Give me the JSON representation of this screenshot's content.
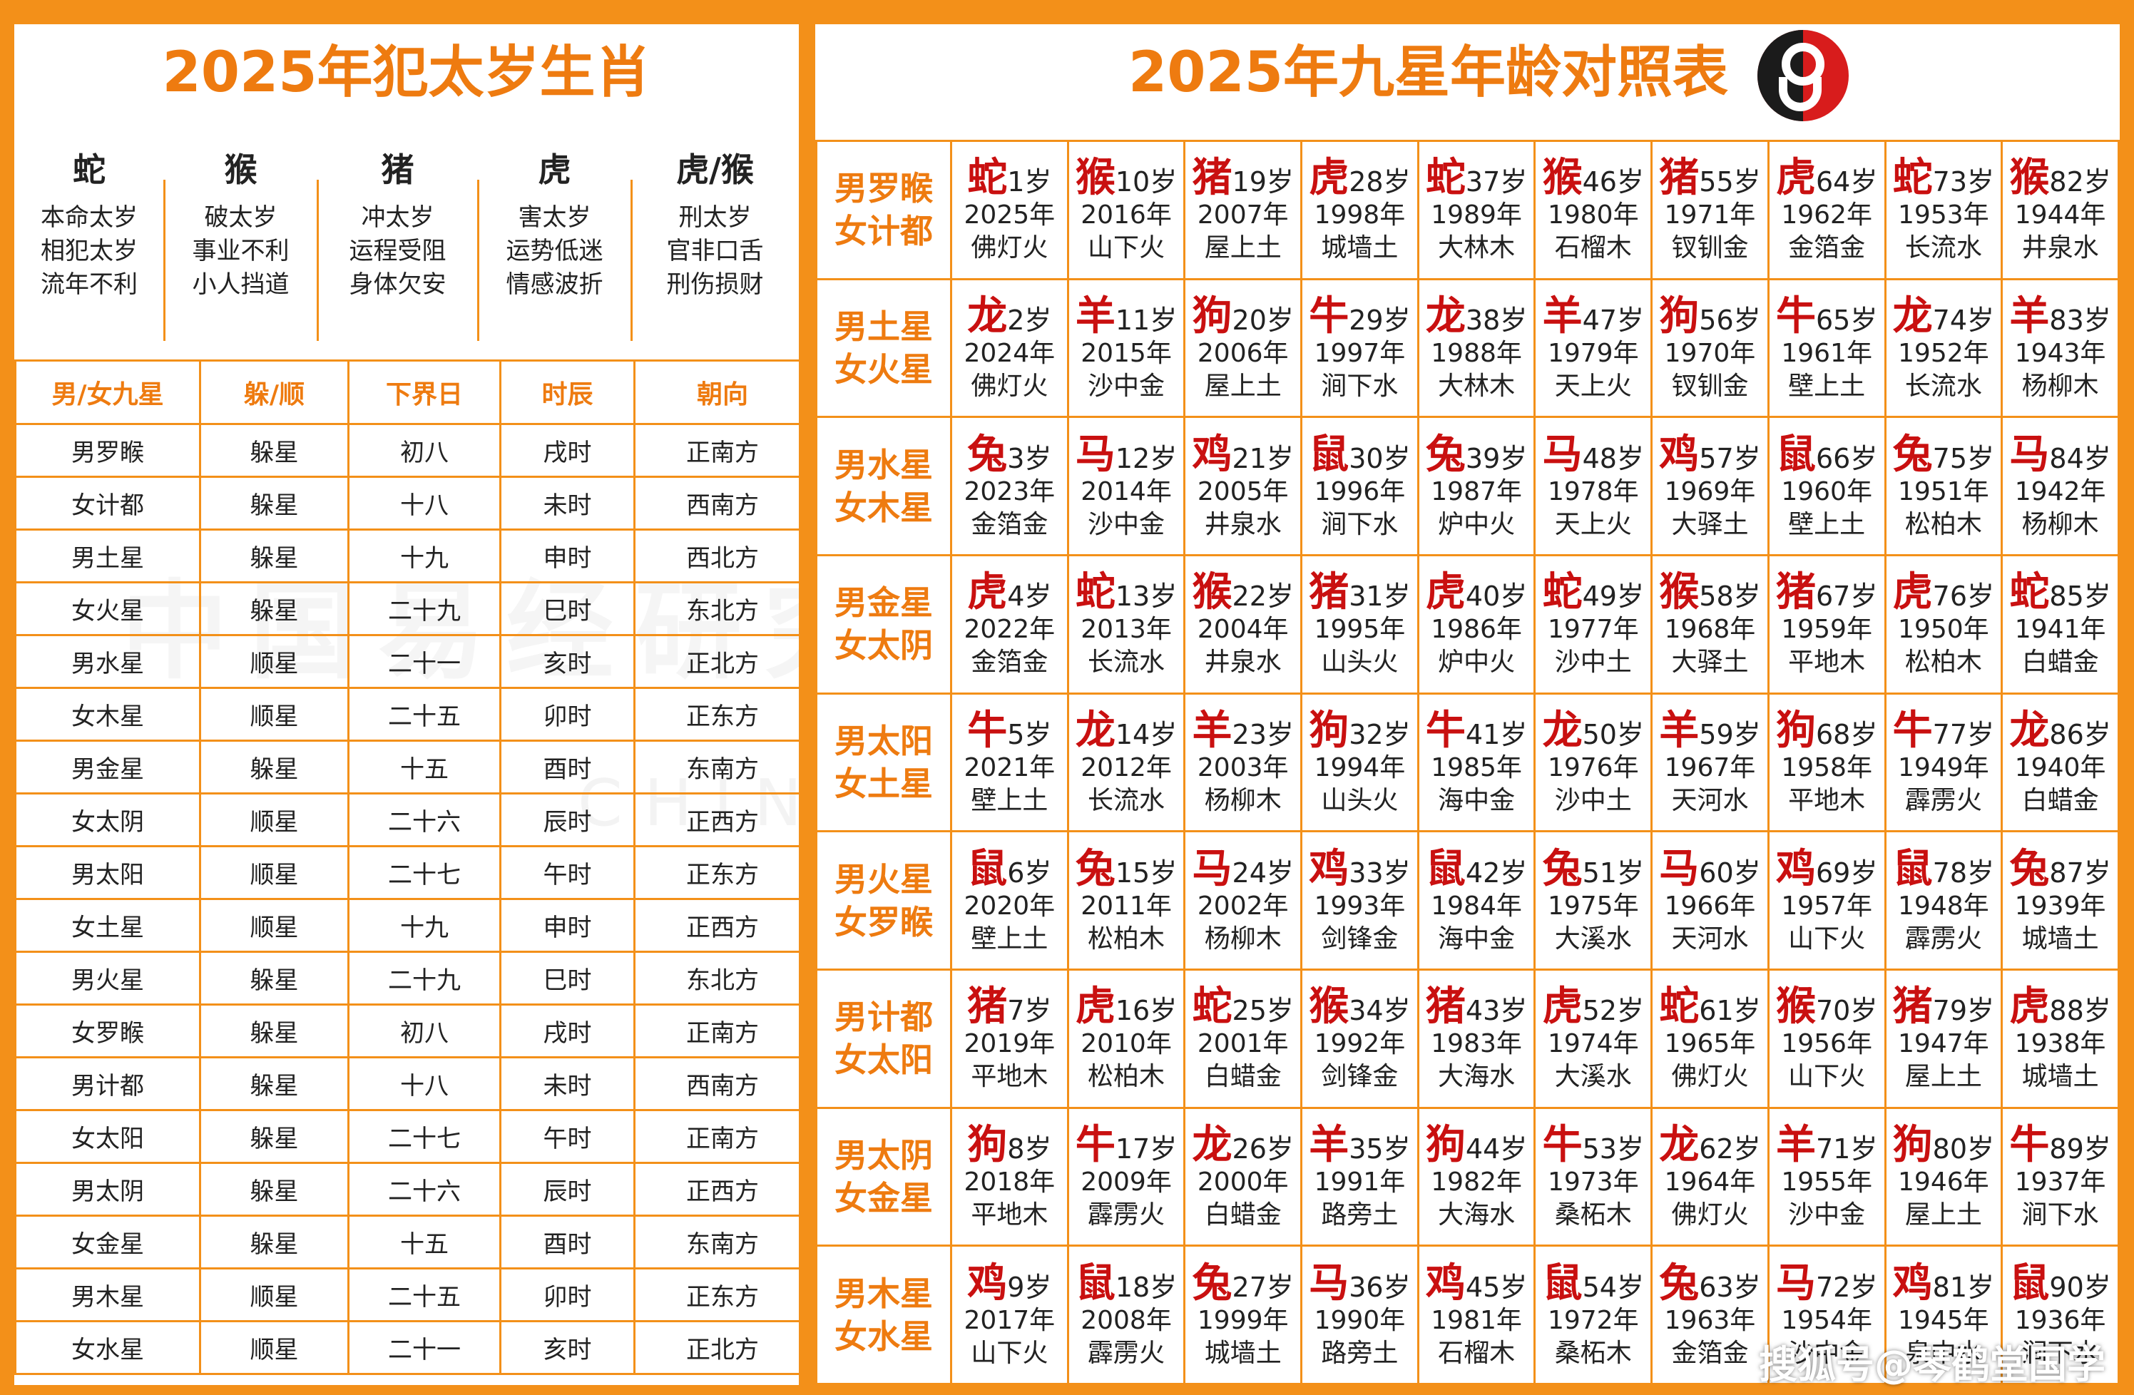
{
  "left": {
    "title": "2025年犯太岁生肖",
    "taisui": [
      {
        "zodiac": "蛇",
        "lines": [
          "本命太岁",
          "相犯太岁",
          "流年不利"
        ]
      },
      {
        "zodiac": "猴",
        "lines": [
          "破太岁",
          "事业不利",
          "小人挡道"
        ]
      },
      {
        "zodiac": "猪",
        "lines": [
          "冲太岁",
          "运程受阻",
          "身体欠安"
        ]
      },
      {
        "zodiac": "虎",
        "lines": [
          "害太岁",
          "运势低迷",
          "情感波折"
        ]
      },
      {
        "zodiac": "虎/猴",
        "lines": [
          "刑太岁",
          "官非口舌",
          "刑伤损财"
        ]
      }
    ],
    "headers": [
      "男/女九星",
      "躲/顺",
      "下界日",
      "时辰",
      "朝向"
    ],
    "rows": [
      [
        "男罗睺",
        "躲星",
        "初八",
        "戌时",
        "正南方"
      ],
      [
        "女计都",
        "躲星",
        "十八",
        "未时",
        "西南方"
      ],
      [
        "男土星",
        "躲星",
        "十九",
        "申时",
        "西北方"
      ],
      [
        "女火星",
        "躲星",
        "二十九",
        "巳时",
        "东北方"
      ],
      [
        "男水星",
        "顺星",
        "二十一",
        "亥时",
        "正北方"
      ],
      [
        "女木星",
        "顺星",
        "二十五",
        "卯时",
        "正东方"
      ],
      [
        "男金星",
        "躲星",
        "十五",
        "酉时",
        "东南方"
      ],
      [
        "女太阴",
        "顺星",
        "二十六",
        "辰时",
        "正西方"
      ],
      [
        "男太阳",
        "顺星",
        "二十七",
        "午时",
        "正东方"
      ],
      [
        "女土星",
        "顺星",
        "十九",
        "申时",
        "正西方"
      ],
      [
        "男火星",
        "躲星",
        "二十九",
        "巳时",
        "东北方"
      ],
      [
        "女罗睺",
        "躲星",
        "初八",
        "戌时",
        "正南方"
      ],
      [
        "男计都",
        "躲星",
        "十八",
        "未时",
        "西南方"
      ],
      [
        "女太阳",
        "躲星",
        "二十七",
        "午时",
        "正南方"
      ],
      [
        "男太阴",
        "躲星",
        "二十六",
        "辰时",
        "正西方"
      ],
      [
        "女金星",
        "躲星",
        "十五",
        "酉时",
        "东南方"
      ],
      [
        "男木星",
        "顺星",
        "二十五",
        "卯时",
        "正东方"
      ],
      [
        "女水星",
        "顺星",
        "二十一",
        "亥时",
        "正北方"
      ]
    ],
    "watermark": "中国易经研究院",
    "watermark_en": "CHINA"
  },
  "right": {
    "title": "2025年九星年龄对照表",
    "logo_icon": "yin-yang-logo-icon",
    "rows": [
      {
        "header": [
          "男罗睺",
          "女计都"
        ],
        "cells": [
          {
            "zodiac": "蛇",
            "age": "1岁",
            "year": "2025年",
            "element": "佛灯火"
          },
          {
            "zodiac": "猴",
            "age": "10岁",
            "year": "2016年",
            "element": "山下火"
          },
          {
            "zodiac": "猪",
            "age": "19岁",
            "year": "2007年",
            "element": "屋上土"
          },
          {
            "zodiac": "虎",
            "age": "28岁",
            "year": "1998年",
            "element": "城墙土"
          },
          {
            "zodiac": "蛇",
            "age": "37岁",
            "year": "1989年",
            "element": "大林木"
          },
          {
            "zodiac": "猴",
            "age": "46岁",
            "year": "1980年",
            "element": "石榴木"
          },
          {
            "zodiac": "猪",
            "age": "55岁",
            "year": "1971年",
            "element": "钗钏金"
          },
          {
            "zodiac": "虎",
            "age": "64岁",
            "year": "1962年",
            "element": "金箔金"
          },
          {
            "zodiac": "蛇",
            "age": "73岁",
            "year": "1953年",
            "element": "长流水"
          },
          {
            "zodiac": "猴",
            "age": "82岁",
            "year": "1944年",
            "element": "井泉水"
          }
        ]
      },
      {
        "header": [
          "男土星",
          "女火星"
        ],
        "cells": [
          {
            "zodiac": "龙",
            "age": "2岁",
            "year": "2024年",
            "element": "佛灯火"
          },
          {
            "zodiac": "羊",
            "age": "11岁",
            "year": "2015年",
            "element": "沙中金"
          },
          {
            "zodiac": "狗",
            "age": "20岁",
            "year": "2006年",
            "element": "屋上土"
          },
          {
            "zodiac": "牛",
            "age": "29岁",
            "year": "1997年",
            "element": "涧下水"
          },
          {
            "zodiac": "龙",
            "age": "38岁",
            "year": "1988年",
            "element": "大林木"
          },
          {
            "zodiac": "羊",
            "age": "47岁",
            "year": "1979年",
            "element": "天上火"
          },
          {
            "zodiac": "狗",
            "age": "56岁",
            "year": "1970年",
            "element": "钗钏金"
          },
          {
            "zodiac": "牛",
            "age": "65岁",
            "year": "1961年",
            "element": "壁上土"
          },
          {
            "zodiac": "龙",
            "age": "74岁",
            "year": "1952年",
            "element": "长流水"
          },
          {
            "zodiac": "羊",
            "age": "83岁",
            "year": "1943年",
            "element": "杨柳木"
          }
        ]
      },
      {
        "header": [
          "男水星",
          "女木星"
        ],
        "cells": [
          {
            "zodiac": "兔",
            "age": "3岁",
            "year": "2023年",
            "element": "金箔金"
          },
          {
            "zodiac": "马",
            "age": "12岁",
            "year": "2014年",
            "element": "沙中金"
          },
          {
            "zodiac": "鸡",
            "age": "21岁",
            "year": "2005年",
            "element": "井泉水"
          },
          {
            "zodiac": "鼠",
            "age": "30岁",
            "year": "1996年",
            "element": "涧下水"
          },
          {
            "zodiac": "兔",
            "age": "39岁",
            "year": "1987年",
            "element": "炉中火"
          },
          {
            "zodiac": "马",
            "age": "48岁",
            "year": "1978年",
            "element": "天上火"
          },
          {
            "zodiac": "鸡",
            "age": "57岁",
            "year": "1969年",
            "element": "大驿土"
          },
          {
            "zodiac": "鼠",
            "age": "66岁",
            "year": "1960年",
            "element": "壁上土"
          },
          {
            "zodiac": "兔",
            "age": "75岁",
            "year": "1951年",
            "element": "松柏木"
          },
          {
            "zodiac": "马",
            "age": "84岁",
            "year": "1942年",
            "element": "杨柳木"
          }
        ]
      },
      {
        "header": [
          "男金星",
          "女太阴"
        ],
        "cells": [
          {
            "zodiac": "虎",
            "age": "4岁",
            "year": "2022年",
            "element": "金箔金"
          },
          {
            "zodiac": "蛇",
            "age": "13岁",
            "year": "2013年",
            "element": "长流水"
          },
          {
            "zodiac": "猴",
            "age": "22岁",
            "year": "2004年",
            "element": "井泉水"
          },
          {
            "zodiac": "猪",
            "age": "31岁",
            "year": "1995年",
            "element": "山头火"
          },
          {
            "zodiac": "虎",
            "age": "40岁",
            "year": "1986年",
            "element": "炉中火"
          },
          {
            "zodiac": "蛇",
            "age": "49岁",
            "year": "1977年",
            "element": "沙中土"
          },
          {
            "zodiac": "猴",
            "age": "58岁",
            "year": "1968年",
            "element": "大驿土"
          },
          {
            "zodiac": "猪",
            "age": "67岁",
            "year": "1959年",
            "element": "平地木"
          },
          {
            "zodiac": "虎",
            "age": "76岁",
            "year": "1950年",
            "element": "松柏木"
          },
          {
            "zodiac": "蛇",
            "age": "85岁",
            "year": "1941年",
            "element": "白蜡金"
          }
        ]
      },
      {
        "header": [
          "男太阳",
          "女土星"
        ],
        "cells": [
          {
            "zodiac": "牛",
            "age": "5岁",
            "year": "2021年",
            "element": "壁上土"
          },
          {
            "zodiac": "龙",
            "age": "14岁",
            "year": "2012年",
            "element": "长流水"
          },
          {
            "zodiac": "羊",
            "age": "23岁",
            "year": "2003年",
            "element": "杨柳木"
          },
          {
            "zodiac": "狗",
            "age": "32岁",
            "year": "1994年",
            "element": "山头火"
          },
          {
            "zodiac": "牛",
            "age": "41岁",
            "year": "1985年",
            "element": "海中金"
          },
          {
            "zodiac": "龙",
            "age": "50岁",
            "year": "1976年",
            "element": "沙中土"
          },
          {
            "zodiac": "羊",
            "age": "59岁",
            "year": "1967年",
            "element": "天河水"
          },
          {
            "zodiac": "狗",
            "age": "68岁",
            "year": "1958年",
            "element": "平地木"
          },
          {
            "zodiac": "牛",
            "age": "77岁",
            "year": "1949年",
            "element": "霹雳火"
          },
          {
            "zodiac": "龙",
            "age": "86岁",
            "year": "1940年",
            "element": "白蜡金"
          }
        ]
      },
      {
        "header": [
          "男火星",
          "女罗睺"
        ],
        "cells": [
          {
            "zodiac": "鼠",
            "age": "6岁",
            "year": "2020年",
            "element": "壁上土"
          },
          {
            "zodiac": "兔",
            "age": "15岁",
            "year": "2011年",
            "element": "松柏木"
          },
          {
            "zodiac": "马",
            "age": "24岁",
            "year": "2002年",
            "element": "杨柳木"
          },
          {
            "zodiac": "鸡",
            "age": "33岁",
            "year": "1993年",
            "element": "剑锋金"
          },
          {
            "zodiac": "鼠",
            "age": "42岁",
            "year": "1984年",
            "element": "海中金"
          },
          {
            "zodiac": "兔",
            "age": "51岁",
            "year": "1975年",
            "element": "大溪水"
          },
          {
            "zodiac": "马",
            "age": "60岁",
            "year": "1966年",
            "element": "天河水"
          },
          {
            "zodiac": "鸡",
            "age": "69岁",
            "year": "1957年",
            "element": "山下火"
          },
          {
            "zodiac": "鼠",
            "age": "78岁",
            "year": "1948年",
            "element": "霹雳火"
          },
          {
            "zodiac": "兔",
            "age": "87岁",
            "year": "1939年",
            "element": "城墙土"
          }
        ]
      },
      {
        "header": [
          "男计都",
          "女太阳"
        ],
        "cells": [
          {
            "zodiac": "猪",
            "age": "7岁",
            "year": "2019年",
            "element": "平地木"
          },
          {
            "zodiac": "虎",
            "age": "16岁",
            "year": "2010年",
            "element": "松柏木"
          },
          {
            "zodiac": "蛇",
            "age": "25岁",
            "year": "2001年",
            "element": "白蜡金"
          },
          {
            "zodiac": "猴",
            "age": "34岁",
            "year": "1992年",
            "element": "剑锋金"
          },
          {
            "zodiac": "猪",
            "age": "43岁",
            "year": "1983年",
            "element": "大海水"
          },
          {
            "zodiac": "虎",
            "age": "52岁",
            "year": "1974年",
            "element": "大溪水"
          },
          {
            "zodiac": "蛇",
            "age": "61岁",
            "year": "1965年",
            "element": "佛灯火"
          },
          {
            "zodiac": "猴",
            "age": "70岁",
            "year": "1956年",
            "element": "山下火"
          },
          {
            "zodiac": "猪",
            "age": "79岁",
            "year": "1947年",
            "element": "屋上土"
          },
          {
            "zodiac": "虎",
            "age": "88岁",
            "year": "1938年",
            "element": "城墙土"
          }
        ]
      },
      {
        "header": [
          "男太阴",
          "女金星"
        ],
        "cells": [
          {
            "zodiac": "狗",
            "age": "8岁",
            "year": "2018年",
            "element": "平地木"
          },
          {
            "zodiac": "牛",
            "age": "17岁",
            "year": "2009年",
            "element": "霹雳火"
          },
          {
            "zodiac": "龙",
            "age": "26岁",
            "year": "2000年",
            "element": "白蜡金"
          },
          {
            "zodiac": "羊",
            "age": "35岁",
            "year": "1991年",
            "element": "路旁土"
          },
          {
            "zodiac": "狗",
            "age": "44岁",
            "year": "1982年",
            "element": "大海水"
          },
          {
            "zodiac": "牛",
            "age": "53岁",
            "year": "1973年",
            "element": "桑柘木"
          },
          {
            "zodiac": "龙",
            "age": "62岁",
            "year": "1964年",
            "element": "佛灯火"
          },
          {
            "zodiac": "羊",
            "age": "71岁",
            "year": "1955年",
            "element": "沙中金"
          },
          {
            "zodiac": "狗",
            "age": "80岁",
            "year": "1946年",
            "element": "屋上土"
          },
          {
            "zodiac": "牛",
            "age": "89岁",
            "year": "1937年",
            "element": "涧下水"
          }
        ]
      },
      {
        "header": [
          "男木星",
          "女水星"
        ],
        "cells": [
          {
            "zodiac": "鸡",
            "age": "9岁",
            "year": "2017年",
            "element": "山下火"
          },
          {
            "zodiac": "鼠",
            "age": "18岁",
            "year": "2008年",
            "element": "霹雳火"
          },
          {
            "zodiac": "兔",
            "age": "27岁",
            "year": "1999年",
            "element": "城墙土"
          },
          {
            "zodiac": "马",
            "age": "36岁",
            "year": "1990年",
            "element": "路旁土"
          },
          {
            "zodiac": "鸡",
            "age": "45岁",
            "year": "1981年",
            "element": "石榴木"
          },
          {
            "zodiac": "鼠",
            "age": "54岁",
            "year": "1972年",
            "element": "桑柘木"
          },
          {
            "zodiac": "兔",
            "age": "63岁",
            "year": "1963年",
            "element": "金箔金"
          },
          {
            "zodiac": "马",
            "age": "72岁",
            "year": "1954年",
            "element": "沙中金"
          },
          {
            "zodiac": "鸡",
            "age": "81岁",
            "year": "1945年",
            "element": "泉中水"
          },
          {
            "zodiac": "鼠",
            "age": "90岁",
            "year": "1936年",
            "element": "涧下水"
          }
        ]
      }
    ]
  },
  "footer_watermark": "搜狐号@琴鹤堂国学",
  "colors": {
    "accent": "#f39019",
    "title": "#ee7b10",
    "zodiac": "#c91010",
    "text": "#222222"
  }
}
